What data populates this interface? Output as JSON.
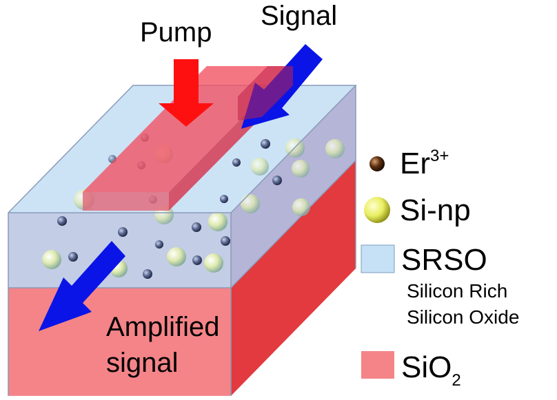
{
  "labels": {
    "pump": "Pump",
    "signal": "Signal",
    "amplified_line1": "Amplified",
    "amplified_line2": "signal"
  },
  "legend": {
    "er": {
      "base": "Er",
      "sup": "3+"
    },
    "sinp": {
      "text": "Si-np"
    },
    "srso": {
      "text": "SRSO",
      "desc_line1": "Silicon Rich",
      "desc_line2": "Silicon Oxide"
    },
    "sio2": {
      "base": "SiO",
      "sub": "2"
    }
  },
  "colors": {
    "sio2_front": "#f48488",
    "sio2_side": "#e23a3e",
    "srso": "#c6e0f5",
    "pump_arrow": "#ff1010",
    "signal_arrow": "#0a14e6",
    "er_ion": "#3a2410",
    "si_np": "#e8ee70"
  }
}
